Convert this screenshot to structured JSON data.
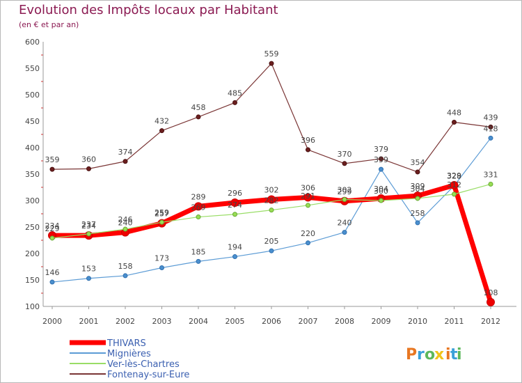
{
  "chart_data": {
    "type": "line",
    "title": "Evolution des Impôts locaux par Habitant",
    "subtitle": "(en € et par an)",
    "x": [
      "2000",
      "2001",
      "2002",
      "2003",
      "2004",
      "2005",
      "2006",
      "2007",
      "2008",
      "2009",
      "2010",
      "2011",
      "2012"
    ],
    "ylim": [
      100,
      600
    ],
    "yticks": [
      100,
      150,
      200,
      250,
      300,
      350,
      400,
      450,
      500,
      550,
      600
    ],
    "grid": false,
    "legend_position": "bottom-left",
    "series": [
      {
        "name": "THIVARS",
        "color": "#ff0000",
        "values": [
          234,
          234,
          240,
          257,
          289,
          296,
          302,
          306,
          299,
          304,
          309,
          329,
          108
        ]
      },
      {
        "name": "Mignières",
        "color": "#5b9bd5",
        "values": [
          146,
          153,
          158,
          173,
          185,
          194,
          205,
          220,
          240,
          359,
          258,
          328,
          418
        ]
      },
      {
        "name": "Ver-lès-Chartres",
        "color": "#99dd66",
        "values": [
          229,
          237,
          246,
          259,
          269,
          274,
          282,
          291,
          302,
          300,
          304,
          312,
          331
        ]
      },
      {
        "name": "Fontenay-sur-Eure",
        "color": "#7a3535",
        "values": [
          359,
          360,
          374,
          432,
          458,
          485,
          559,
          396,
          370,
          379,
          354,
          448,
          439
        ]
      }
    ]
  },
  "logo": {
    "text": "Proxiti",
    "colors": [
      "#e87722",
      "#3aa0d8",
      "#5cb85c",
      "#f0c419"
    ]
  }
}
